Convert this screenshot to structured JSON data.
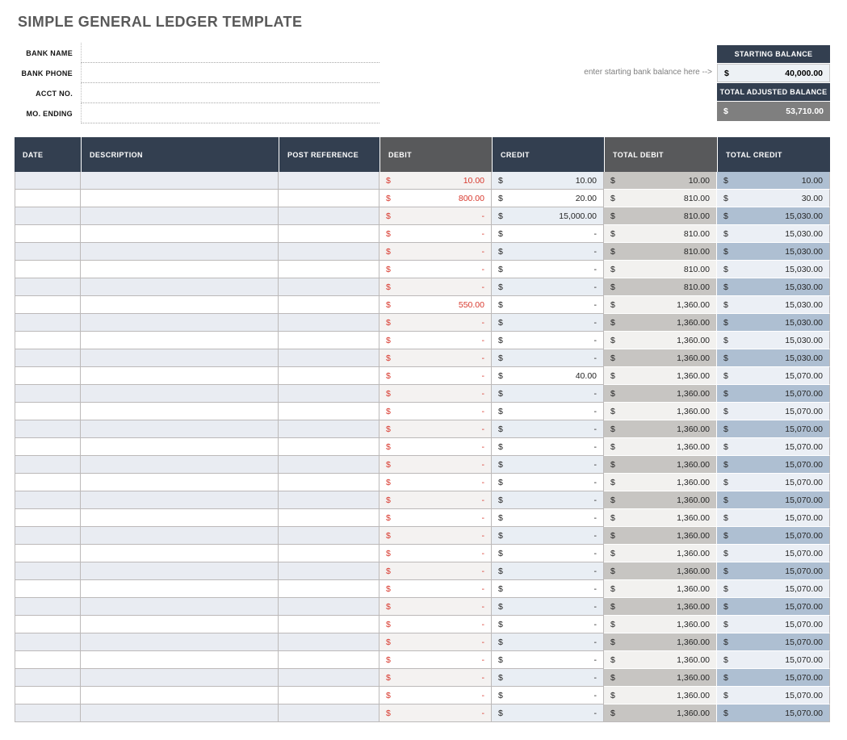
{
  "title": "SIMPLE GENERAL LEDGER TEMPLATE",
  "bank_fields": [
    {
      "label": "BANK NAME",
      "value": ""
    },
    {
      "label": "BANK PHONE",
      "value": ""
    },
    {
      "label": "ACCT NO.",
      "value": ""
    },
    {
      "label": "MO. ENDING",
      "value": ""
    }
  ],
  "balance_box": {
    "note": "enter starting bank balance here -->",
    "starting_balance_label": "STARTING BALANCE",
    "starting_balance_currency": "$",
    "starting_balance_value": "40,000.00",
    "adjusted_balance_label": "TOTAL ADJUSTED BALANCE",
    "adjusted_balance_currency": "$",
    "adjusted_balance_value": "53,710.00"
  },
  "colors": {
    "navy_header": "#333f50",
    "gray_header": "#58595b",
    "title_gray": "#595959",
    "debit_red": "#d8382d",
    "adjusted_value_bg": "#7f7f7f",
    "total_debit_shade": "#c7c5c2",
    "total_credit_shade": "#aebfd2"
  },
  "table": {
    "currency": "$",
    "columns": [
      "DATE",
      "DESCRIPTION",
      "POST REFERENCE",
      "DEBIT",
      "CREDIT",
      "TOTAL DEBIT",
      "TOTAL CREDIT"
    ],
    "rows": [
      {
        "date": "",
        "description": "",
        "post_reference": "",
        "debit": "10.00",
        "credit": "10.00",
        "total_debit": "10.00",
        "total_credit": "10.00"
      },
      {
        "date": "",
        "description": "",
        "post_reference": "",
        "debit": "800.00",
        "credit": "20.00",
        "total_debit": "810.00",
        "total_credit": "30.00"
      },
      {
        "date": "",
        "description": "",
        "post_reference": "",
        "debit": "-",
        "credit": "15,000.00",
        "total_debit": "810.00",
        "total_credit": "15,030.00"
      },
      {
        "date": "",
        "description": "",
        "post_reference": "",
        "debit": "-",
        "credit": "-",
        "total_debit": "810.00",
        "total_credit": "15,030.00"
      },
      {
        "date": "",
        "description": "",
        "post_reference": "",
        "debit": "-",
        "credit": "-",
        "total_debit": "810.00",
        "total_credit": "15,030.00"
      },
      {
        "date": "",
        "description": "",
        "post_reference": "",
        "debit": "-",
        "credit": "-",
        "total_debit": "810.00",
        "total_credit": "15,030.00"
      },
      {
        "date": "",
        "description": "",
        "post_reference": "",
        "debit": "-",
        "credit": "-",
        "total_debit": "810.00",
        "total_credit": "15,030.00"
      },
      {
        "date": "",
        "description": "",
        "post_reference": "",
        "debit": "550.00",
        "credit": "-",
        "total_debit": "1,360.00",
        "total_credit": "15,030.00"
      },
      {
        "date": "",
        "description": "",
        "post_reference": "",
        "debit": "-",
        "credit": "-",
        "total_debit": "1,360.00",
        "total_credit": "15,030.00"
      },
      {
        "date": "",
        "description": "",
        "post_reference": "",
        "debit": "-",
        "credit": "-",
        "total_debit": "1,360.00",
        "total_credit": "15,030.00"
      },
      {
        "date": "",
        "description": "",
        "post_reference": "",
        "debit": "-",
        "credit": "-",
        "total_debit": "1,360.00",
        "total_credit": "15,030.00"
      },
      {
        "date": "",
        "description": "",
        "post_reference": "",
        "debit": "-",
        "credit": "40.00",
        "total_debit": "1,360.00",
        "total_credit": "15,070.00"
      },
      {
        "date": "",
        "description": "",
        "post_reference": "",
        "debit": "-",
        "credit": "-",
        "total_debit": "1,360.00",
        "total_credit": "15,070.00"
      },
      {
        "date": "",
        "description": "",
        "post_reference": "",
        "debit": "-",
        "credit": "-",
        "total_debit": "1,360.00",
        "total_credit": "15,070.00"
      },
      {
        "date": "",
        "description": "",
        "post_reference": "",
        "debit": "-",
        "credit": "-",
        "total_debit": "1,360.00",
        "total_credit": "15,070.00"
      },
      {
        "date": "",
        "description": "",
        "post_reference": "",
        "debit": "-",
        "credit": "-",
        "total_debit": "1,360.00",
        "total_credit": "15,070.00"
      },
      {
        "date": "",
        "description": "",
        "post_reference": "",
        "debit": "-",
        "credit": "-",
        "total_debit": "1,360.00",
        "total_credit": "15,070.00"
      },
      {
        "date": "",
        "description": "",
        "post_reference": "",
        "debit": "-",
        "credit": "-",
        "total_debit": "1,360.00",
        "total_credit": "15,070.00"
      },
      {
        "date": "",
        "description": "",
        "post_reference": "",
        "debit": "-",
        "credit": "-",
        "total_debit": "1,360.00",
        "total_credit": "15,070.00"
      },
      {
        "date": "",
        "description": "",
        "post_reference": "",
        "debit": "-",
        "credit": "-",
        "total_debit": "1,360.00",
        "total_credit": "15,070.00"
      },
      {
        "date": "",
        "description": "",
        "post_reference": "",
        "debit": "-",
        "credit": "-",
        "total_debit": "1,360.00",
        "total_credit": "15,070.00"
      },
      {
        "date": "",
        "description": "",
        "post_reference": "",
        "debit": "-",
        "credit": "-",
        "total_debit": "1,360.00",
        "total_credit": "15,070.00"
      },
      {
        "date": "",
        "description": "",
        "post_reference": "",
        "debit": "-",
        "credit": "-",
        "total_debit": "1,360.00",
        "total_credit": "15,070.00"
      },
      {
        "date": "",
        "description": "",
        "post_reference": "",
        "debit": "-",
        "credit": "-",
        "total_debit": "1,360.00",
        "total_credit": "15,070.00"
      },
      {
        "date": "",
        "description": "",
        "post_reference": "",
        "debit": "-",
        "credit": "-",
        "total_debit": "1,360.00",
        "total_credit": "15,070.00"
      },
      {
        "date": "",
        "description": "",
        "post_reference": "",
        "debit": "-",
        "credit": "-",
        "total_debit": "1,360.00",
        "total_credit": "15,070.00"
      },
      {
        "date": "",
        "description": "",
        "post_reference": "",
        "debit": "-",
        "credit": "-",
        "total_debit": "1,360.00",
        "total_credit": "15,070.00"
      },
      {
        "date": "",
        "description": "",
        "post_reference": "",
        "debit": "-",
        "credit": "-",
        "total_debit": "1,360.00",
        "total_credit": "15,070.00"
      },
      {
        "date": "",
        "description": "",
        "post_reference": "",
        "debit": "-",
        "credit": "-",
        "total_debit": "1,360.00",
        "total_credit": "15,070.00"
      },
      {
        "date": "",
        "description": "",
        "post_reference": "",
        "debit": "-",
        "credit": "-",
        "total_debit": "1,360.00",
        "total_credit": "15,070.00"
      },
      {
        "date": "",
        "description": "",
        "post_reference": "",
        "debit": "-",
        "credit": "-",
        "total_debit": "1,360.00",
        "total_credit": "15,070.00"
      }
    ]
  }
}
